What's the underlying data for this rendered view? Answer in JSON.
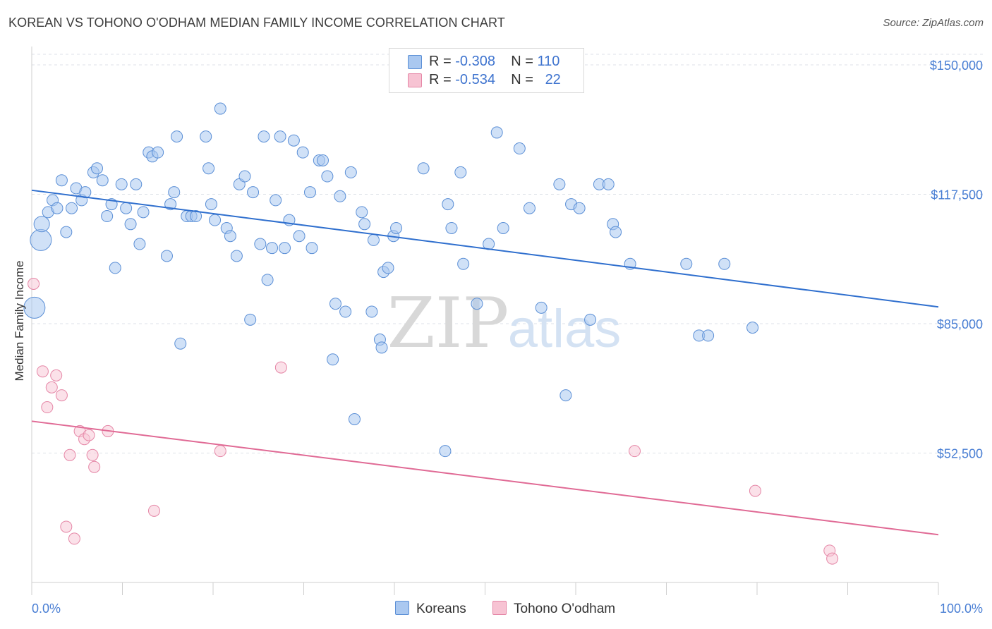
{
  "header": {
    "title": "KOREAN VS TOHONO O'ODHAM MEDIAN FAMILY INCOME CORRELATION CHART",
    "source": "Source: ZipAtlas.com"
  },
  "watermark": {
    "zip": "ZIP",
    "atlas": "atlas"
  },
  "legend_top": {
    "rows": [
      {
        "r_label": "R =",
        "r_value": "-0.308",
        "n_label": "N =",
        "n_value": "110"
      },
      {
        "r_label": "R =",
        "r_value": "-0.534",
        "n_label": "N =",
        "n_value": "22"
      }
    ]
  },
  "legend_bottom": {
    "series1": "Koreans",
    "series2": "Tohono O'odham"
  },
  "colors": {
    "blue_fill": "#aac8f0",
    "blue_stroke": "#5b8fd6",
    "blue_line": "#2f6fce",
    "pink_fill": "#f7c3d3",
    "pink_stroke": "#e586a6",
    "pink_line": "#e06a95",
    "tick_text": "#4a7fd4",
    "grid": "#dde2e8"
  },
  "chart_data": {
    "type": "scatter",
    "title": "KOREAN VS TOHONO O'ODHAM MEDIAN FAMILY INCOME CORRELATION CHART",
    "xlabel": "",
    "ylabel": "Median Family Income",
    "xlim": [
      0,
      100
    ],
    "ylim": [
      20000,
      153000
    ],
    "x_tick_labels": [
      "0.0%",
      "100.0%"
    ],
    "y_ticks": [
      52500,
      85000,
      117500,
      150000
    ],
    "y_tick_labels": [
      "$52,500",
      "$85,000",
      "$117,500",
      "$150,000"
    ],
    "grid": true,
    "legend_placement": "top-center",
    "series": [
      {
        "name": "Koreans",
        "r": -0.308,
        "n": 110,
        "trend": {
          "x": [
            0,
            100
          ],
          "y": [
            118500,
            89200
          ]
        },
        "points": [
          [
            0.3,
            89000,
            3
          ],
          [
            1.0,
            106000,
            3
          ],
          [
            1.1,
            110000,
            2
          ],
          [
            1.8,
            113000,
            1
          ],
          [
            2.3,
            116000,
            1
          ],
          [
            2.8,
            114000,
            1
          ],
          [
            3.3,
            121000,
            1
          ],
          [
            3.8,
            108000,
            1
          ],
          [
            4.4,
            114000,
            1
          ],
          [
            4.9,
            119000,
            1
          ],
          [
            5.5,
            116000,
            1
          ],
          [
            5.9,
            118000,
            1
          ],
          [
            6.8,
            123000,
            1
          ],
          [
            7.2,
            124000,
            1
          ],
          [
            7.8,
            121000,
            1
          ],
          [
            8.3,
            112000,
            1
          ],
          [
            8.8,
            115000,
            1
          ],
          [
            9.2,
            99000,
            1
          ],
          [
            9.9,
            120000,
            1
          ],
          [
            10.4,
            114000,
            1
          ],
          [
            10.9,
            110000,
            1
          ],
          [
            11.5,
            120000,
            1
          ],
          [
            11.9,
            105000,
            1
          ],
          [
            12.3,
            113000,
            1
          ],
          [
            12.9,
            128000,
            1
          ],
          [
            13.3,
            127000,
            1
          ],
          [
            13.9,
            128000,
            1
          ],
          [
            14.9,
            102000,
            1
          ],
          [
            15.3,
            115000,
            1
          ],
          [
            15.7,
            118000,
            1
          ],
          [
            16.0,
            132000,
            1
          ],
          [
            16.4,
            80000,
            1
          ],
          [
            17.1,
            112000,
            1
          ],
          [
            17.6,
            112000,
            1
          ],
          [
            18.1,
            112000,
            1
          ],
          [
            19.2,
            132000,
            1
          ],
          [
            19.5,
            124000,
            1
          ],
          [
            19.8,
            115000,
            1
          ],
          [
            20.2,
            111000,
            1
          ],
          [
            20.8,
            139000,
            1
          ],
          [
            21.5,
            109000,
            1
          ],
          [
            21.9,
            107000,
            1
          ],
          [
            22.6,
            102000,
            1
          ],
          [
            22.9,
            120000,
            1
          ],
          [
            23.5,
            122000,
            1
          ],
          [
            24.1,
            86000,
            1
          ],
          [
            24.4,
            118000,
            1
          ],
          [
            25.2,
            105000,
            1
          ],
          [
            25.6,
            132000,
            1
          ],
          [
            26.0,
            96000,
            1
          ],
          [
            26.5,
            104000,
            1
          ],
          [
            26.9,
            116000,
            1
          ],
          [
            27.4,
            132000,
            1
          ],
          [
            27.9,
            104000,
            1
          ],
          [
            28.4,
            111000,
            1
          ],
          [
            28.9,
            131000,
            1
          ],
          [
            29.5,
            107000,
            1
          ],
          [
            29.9,
            128000,
            1
          ],
          [
            30.7,
            118000,
            1
          ],
          [
            30.9,
            104000,
            1
          ],
          [
            31.7,
            126000,
            1
          ],
          [
            32.1,
            126000,
            1
          ],
          [
            32.6,
            122000,
            1
          ],
          [
            33.2,
            76000,
            1
          ],
          [
            33.5,
            90000,
            1
          ],
          [
            34.0,
            117000,
            1
          ],
          [
            34.6,
            88000,
            1
          ],
          [
            35.2,
            123000,
            1
          ],
          [
            35.6,
            61000,
            1
          ],
          [
            36.4,
            113000,
            1
          ],
          [
            36.7,
            110000,
            1
          ],
          [
            37.5,
            88000,
            1
          ],
          [
            37.7,
            106000,
            1
          ],
          [
            38.4,
            81000,
            1
          ],
          [
            38.6,
            79000,
            1
          ],
          [
            38.8,
            98000,
            1
          ],
          [
            39.3,
            99000,
            1
          ],
          [
            39.9,
            107000,
            1
          ],
          [
            40.2,
            109000,
            1
          ],
          [
            43.2,
            124000,
            1
          ],
          [
            45.6,
            53000,
            1
          ],
          [
            45.9,
            115000,
            1
          ],
          [
            46.3,
            109000,
            1
          ],
          [
            47.3,
            123000,
            1
          ],
          [
            47.6,
            100000,
            1
          ],
          [
            49.1,
            90000,
            1
          ],
          [
            50.4,
            105000,
            1
          ],
          [
            51.1,
            147000,
            1
          ],
          [
            51.3,
            133000,
            1
          ],
          [
            52.0,
            109000,
            1
          ],
          [
            53.8,
            129000,
            1
          ],
          [
            54.9,
            114000,
            1
          ],
          [
            56.2,
            89000,
            1
          ],
          [
            58.2,
            120000,
            1
          ],
          [
            58.9,
            67000,
            1
          ],
          [
            59.5,
            115000,
            1
          ],
          [
            60.4,
            114000,
            1
          ],
          [
            61.6,
            86000,
            1
          ],
          [
            62.6,
            120000,
            1
          ],
          [
            63.6,
            120000,
            1
          ],
          [
            64.1,
            110000,
            1
          ],
          [
            64.4,
            108000,
            1
          ],
          [
            66.0,
            100000,
            1
          ],
          [
            72.2,
            100000,
            1
          ],
          [
            73.6,
            82000,
            1
          ],
          [
            74.6,
            82000,
            1
          ],
          [
            76.4,
            100000,
            1
          ],
          [
            79.5,
            84000,
            1
          ]
        ]
      },
      {
        "name": "Tohono O'odham",
        "r": -0.534,
        "n": 22,
        "trend": {
          "x": [
            0,
            100
          ],
          "y": [
            60500,
            32000
          ]
        },
        "points": [
          [
            0.2,
            95000
          ],
          [
            1.2,
            73000
          ],
          [
            1.7,
            64000
          ],
          [
            2.2,
            69000
          ],
          [
            2.7,
            72000
          ],
          [
            3.3,
            67000
          ],
          [
            3.8,
            34000
          ],
          [
            4.2,
            52000
          ],
          [
            4.7,
            31000
          ],
          [
            5.3,
            58000
          ],
          [
            5.8,
            56000
          ],
          [
            6.3,
            57000
          ],
          [
            6.7,
            52000
          ],
          [
            6.9,
            49000
          ],
          [
            8.4,
            58000
          ],
          [
            13.5,
            38000
          ],
          [
            20.8,
            53000
          ],
          [
            27.5,
            74000
          ],
          [
            66.5,
            53000
          ],
          [
            79.8,
            43000
          ],
          [
            88.0,
            28000
          ],
          [
            88.3,
            26000
          ]
        ]
      }
    ]
  }
}
